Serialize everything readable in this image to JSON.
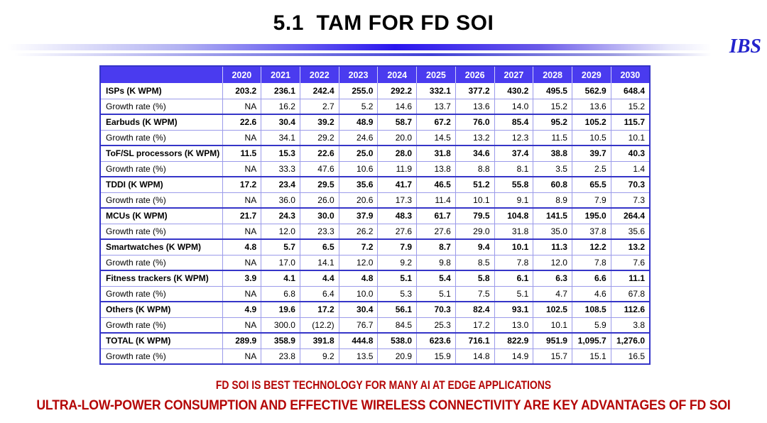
{
  "title": "5.1  TAM FOR FD SOI",
  "logo_text": "IBS",
  "colors": {
    "header_bg": "#4a3bef",
    "grid_light": "#9b9bea",
    "grid_dark": "#3535c8",
    "footer_red": "#b40606",
    "logo_blue": "#2323cc"
  },
  "footer": {
    "line1": "FD SOI IS BEST TECHNOLOGY FOR MANY AI AT EDGE APPLICATIONS",
    "line2": "ULTRA-LOW-POWER CONSUMPTION AND EFFECTIVE WIRELESS CONNECTIVITY ARE KEY ADVANTAGES OF FD SOI"
  },
  "chart_data": {
    "type": "table",
    "title": "5.1  TAM FOR FD SOI",
    "categories": [
      "2020",
      "2021",
      "2022",
      "2023",
      "2024",
      "2025",
      "2026",
      "2027",
      "2028",
      "2029",
      "2030"
    ],
    "series": [
      {
        "name": "ISPs (K WPM)",
        "bold": true,
        "values": [
          "203.2",
          "236.1",
          "242.4",
          "255.0",
          "292.2",
          "332.1",
          "377.2",
          "430.2",
          "495.5",
          "562.9",
          "648.4"
        ]
      },
      {
        "name": "Growth rate (%)",
        "bold": false,
        "values": [
          "NA",
          "16.2",
          "2.7",
          "5.2",
          "14.6",
          "13.7",
          "13.6",
          "14.0",
          "15.2",
          "13.6",
          "15.2"
        ]
      },
      {
        "name": "Earbuds (K WPM)",
        "bold": true,
        "values": [
          "22.6",
          "30.4",
          "39.2",
          "48.9",
          "58.7",
          "67.2",
          "76.0",
          "85.4",
          "95.2",
          "105.2",
          "115.7"
        ]
      },
      {
        "name": "Growth rate (%)",
        "bold": false,
        "values": [
          "NA",
          "34.1",
          "29.2",
          "24.6",
          "20.0",
          "14.5",
          "13.2",
          "12.3",
          "11.5",
          "10.5",
          "10.1"
        ]
      },
      {
        "name": "ToF/SL processors (K WPM)",
        "bold": true,
        "values": [
          "11.5",
          "15.3",
          "22.6",
          "25.0",
          "28.0",
          "31.8",
          "34.6",
          "37.4",
          "38.8",
          "39.7",
          "40.3"
        ]
      },
      {
        "name": "Growth rate (%)",
        "bold": false,
        "values": [
          "NA",
          "33.3",
          "47.6",
          "10.6",
          "11.9",
          "13.8",
          "8.8",
          "8.1",
          "3.5",
          "2.5",
          "1.4"
        ]
      },
      {
        "name": "TDDI (K WPM)",
        "bold": true,
        "values": [
          "17.2",
          "23.4",
          "29.5",
          "35.6",
          "41.7",
          "46.5",
          "51.2",
          "55.8",
          "60.8",
          "65.5",
          "70.3"
        ]
      },
      {
        "name": "Growth rate (%)",
        "bold": false,
        "values": [
          "NA",
          "36.0",
          "26.0",
          "20.6",
          "17.3",
          "11.4",
          "10.1",
          "9.1",
          "8.9",
          "7.9",
          "7.3"
        ]
      },
      {
        "name": "MCUs (K WPM)",
        "bold": true,
        "values": [
          "21.7",
          "24.3",
          "30.0",
          "37.9",
          "48.3",
          "61.7",
          "79.5",
          "104.8",
          "141.5",
          "195.0",
          "264.4"
        ]
      },
      {
        "name": "Growth rate (%)",
        "bold": false,
        "values": [
          "NA",
          "12.0",
          "23.3",
          "26.2",
          "27.6",
          "27.6",
          "29.0",
          "31.8",
          "35.0",
          "37.8",
          "35.6"
        ]
      },
      {
        "name": "Smartwatches (K WPM)",
        "bold": true,
        "values": [
          "4.8",
          "5.7",
          "6.5",
          "7.2",
          "7.9",
          "8.7",
          "9.4",
          "10.1",
          "11.3",
          "12.2",
          "13.2"
        ]
      },
      {
        "name": "Growth rate (%)",
        "bold": false,
        "values": [
          "NA",
          "17.0",
          "14.1",
          "12.0",
          "9.2",
          "9.8",
          "8.5",
          "7.8",
          "12.0",
          "7.8",
          "7.6"
        ]
      },
      {
        "name": "Fitness trackers (K WPM)",
        "bold": true,
        "values": [
          "3.9",
          "4.1",
          "4.4",
          "4.8",
          "5.1",
          "5.4",
          "5.8",
          "6.1",
          "6.3",
          "6.6",
          "11.1"
        ]
      },
      {
        "name": "Growth rate (%)",
        "bold": false,
        "values": [
          "NA",
          "6.8",
          "6.4",
          "10.0",
          "5.3",
          "5.1",
          "7.5",
          "5.1",
          "4.7",
          "4.6",
          "67.8"
        ]
      },
      {
        "name": "Others (K WPM)",
        "bold": true,
        "values": [
          "4.9",
          "19.6",
          "17.2",
          "30.4",
          "56.1",
          "70.3",
          "82.4",
          "93.1",
          "102.5",
          "108.5",
          "112.6"
        ]
      },
      {
        "name": "Growth rate (%)",
        "bold": false,
        "values": [
          "NA",
          "300.0",
          "(12.2)",
          "76.7",
          "84.5",
          "25.3",
          "17.2",
          "13.0",
          "10.1",
          "5.9",
          "3.8"
        ]
      },
      {
        "name": "TOTAL (K WPM)",
        "bold": true,
        "values": [
          "289.9",
          "358.9",
          "391.8",
          "444.8",
          "538.0",
          "623.6",
          "716.1",
          "822.9",
          "951.9",
          "1,095.7",
          "1,276.0"
        ]
      },
      {
        "name": "Growth rate (%)",
        "bold": false,
        "values": [
          "NA",
          "23.8",
          "9.2",
          "13.5",
          "20.9",
          "15.9",
          "14.8",
          "14.9",
          "15.7",
          "15.1",
          "16.5"
        ]
      }
    ]
  }
}
